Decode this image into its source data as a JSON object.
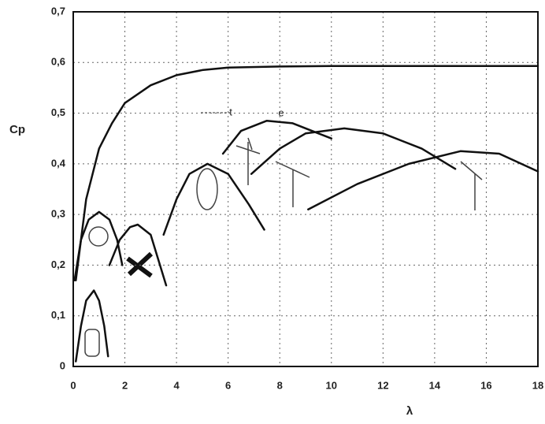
{
  "chart_data": {
    "type": "line",
    "xlabel": "λ",
    "ylabel": "Cp",
    "annotations": [
      "t",
      "e"
    ],
    "xlim": [
      0,
      18
    ],
    "xticks": [
      0,
      2,
      4,
      6,
      8,
      10,
      12,
      14,
      16,
      18
    ],
    "ylim": [
      0,
      0.7
    ],
    "yticks": [
      0,
      {
        "value": 0.1,
        "label": "0,1"
      },
      {
        "value": 0.2,
        "label": "0,2"
      },
      {
        "value": 0.3,
        "label": "0,3"
      },
      {
        "value": 0.4,
        "label": "0,4"
      },
      {
        "value": 0.5,
        "label": "0,5"
      },
      {
        "value": 0.6,
        "label": "0,6"
      },
      {
        "value": 0.7,
        "label": "0,7"
      }
    ],
    "grid": true,
    "series": [
      {
        "color": "#111111",
        "x": [
          0.1,
          0.5,
          1,
          1.5,
          2,
          3,
          4,
          5,
          6,
          8,
          10,
          14,
          18
        ],
        "values": [
          0.17,
          0.33,
          0.43,
          0.48,
          0.52,
          0.555,
          0.575,
          0.585,
          0.59,
          0.592,
          0.593,
          0.593,
          0.593
        ]
      },
      {
        "color": "#111111",
        "x": [
          0.1,
          0.3,
          0.5,
          0.8,
          1.0,
          1.2,
          1.35
        ],
        "values": [
          0.01,
          0.08,
          0.13,
          0.15,
          0.13,
          0.08,
          0.02
        ]
      },
      {
        "color": "#111111",
        "x": [
          0.05,
          0.3,
          0.6,
          1,
          1.4,
          1.7,
          1.9
        ],
        "values": [
          0.17,
          0.25,
          0.29,
          0.305,
          0.29,
          0.25,
          0.2
        ]
      },
      {
        "color": "#111111",
        "x": [
          1.4,
          1.8,
          2.2,
          2.5,
          3,
          3.3,
          3.6
        ],
        "values": [
          0.2,
          0.25,
          0.275,
          0.28,
          0.26,
          0.21,
          0.16
        ]
      },
      {
        "color": "#111111",
        "x": [
          3.5,
          4,
          4.5,
          5.2,
          6,
          6.8,
          7.4
        ],
        "values": [
          0.26,
          0.33,
          0.38,
          0.4,
          0.38,
          0.32,
          0.27
        ]
      },
      {
        "color": "#111111",
        "x": [
          5.8,
          6.5,
          7.5,
          8.5,
          9.5,
          10
        ],
        "values": [
          0.42,
          0.465,
          0.485,
          0.48,
          0.46,
          0.45
        ]
      },
      {
        "color": "#111111",
        "x": [
          6.9,
          8,
          9,
          10.5,
          12,
          13.5,
          14.8
        ],
        "values": [
          0.38,
          0.43,
          0.46,
          0.47,
          0.46,
          0.43,
          0.39
        ]
      },
      {
        "color": "#111111",
        "x": [
          9.1,
          11,
          13,
          15,
          16.5,
          18
        ],
        "values": [
          0.31,
          0.36,
          0.4,
          0.425,
          0.42,
          0.385
        ]
      }
    ]
  }
}
